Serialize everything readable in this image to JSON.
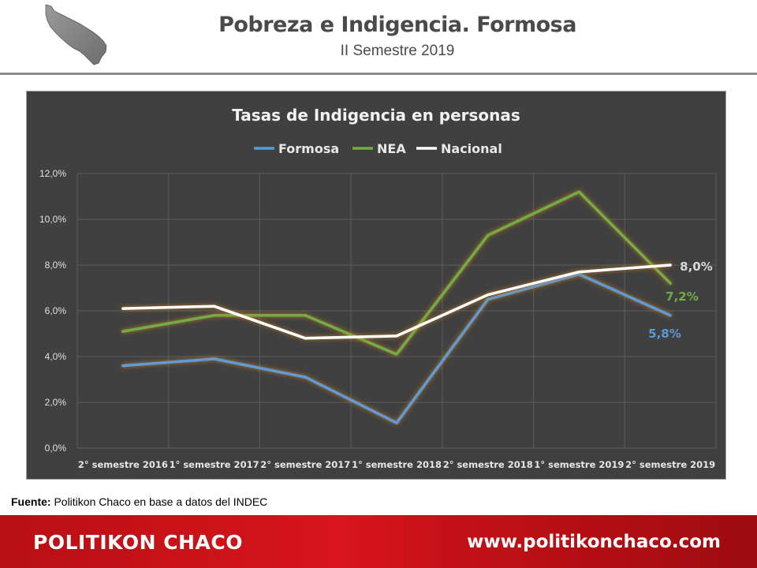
{
  "header": {
    "title": "Pobreza e Indigencia. Formosa",
    "subtitle": "II Semestre 2019",
    "logo_icon": "formosa-map-icon"
  },
  "source": {
    "label": "Fuente:",
    "text": " Politikon Chaco en base a datos del INDEC"
  },
  "footer": {
    "brand": "POLITIKON CHACO",
    "url": "www.politikonchaco.com"
  },
  "colors": {
    "formosa": "#5b9bd5",
    "nea": "#70ad47",
    "nacional": "#ffffff",
    "chart_bg": "#404040"
  },
  "chart_data": {
    "type": "line",
    "title": "Tasas de Indigencia en personas",
    "xlabel": "",
    "ylabel": "",
    "categories": [
      "2° semestre 2016",
      "1° semestre 2017",
      "2° semestre 2017",
      "1° semestre 2018",
      "2° semestre 2018",
      "1° semestre 2019",
      "2° semestre 2019"
    ],
    "ylim": [
      0,
      12
    ],
    "yticks": [
      "0,0%",
      "2,0%",
      "4,0%",
      "6,0%",
      "8,0%",
      "10,0%",
      "12,0%"
    ],
    "grid": true,
    "legend": "top-center",
    "series": [
      {
        "name": "Formosa",
        "color": "#5b9bd5",
        "values": [
          3.6,
          3.9,
          3.1,
          1.1,
          6.5,
          7.6,
          5.8
        ],
        "end_label": "5,8%"
      },
      {
        "name": "NEA",
        "color": "#70ad47",
        "values": [
          5.1,
          5.8,
          5.8,
          4.1,
          9.3,
          11.2,
          7.2
        ],
        "end_label": "7,2%"
      },
      {
        "name": "Nacional",
        "color": "#ffffff",
        "values": [
          6.1,
          6.2,
          4.8,
          4.9,
          6.7,
          7.7,
          8.0
        ],
        "end_label": "8,0%"
      }
    ]
  }
}
